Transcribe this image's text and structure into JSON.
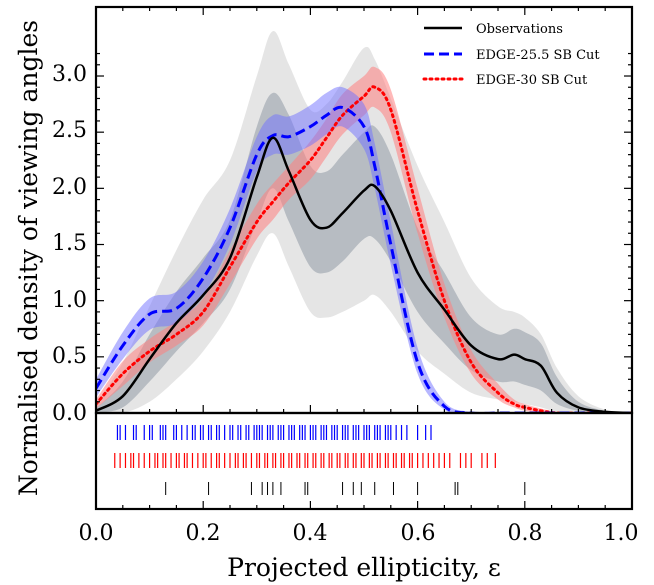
{
  "chart_data": {
    "type": "area",
    "xlabel": "Projected ellipticity, ε",
    "ylabel": "Normalised density of viewing angles",
    "xlim": [
      0.0,
      1.0
    ],
    "ylim": [
      0.0,
      3.5
    ],
    "xticks": [
      "0.0",
      "0.2",
      "0.4",
      "0.6",
      "0.8",
      "1.0"
    ],
    "yticks": [
      "0.0",
      "0.5",
      "1.0",
      "1.5",
      "2.0",
      "2.5",
      "3.0"
    ],
    "legend_position": "top-right",
    "grid": false,
    "colors": {
      "observations": "#000000",
      "edge255": "#0000ff",
      "edge30": "#ff0000",
      "obs_band_outer": "#e0e0e0",
      "obs_band_inner": "#a7adb5",
      "edge255_band": "#6f6fff",
      "edge30_band": "#ff8080"
    },
    "x": [
      0.0,
      0.05,
      0.1,
      0.15,
      0.2,
      0.25,
      0.3,
      0.33,
      0.36,
      0.4,
      0.43,
      0.46,
      0.5,
      0.52,
      0.55,
      0.6,
      0.65,
      0.7,
      0.75,
      0.78,
      0.8,
      0.83,
      0.86,
      0.9,
      0.95,
      1.0
    ],
    "series": [
      {
        "name": "Observations",
        "style": "solid",
        "values": [
          0.02,
          0.15,
          0.48,
          0.8,
          1.05,
          1.38,
          2.1,
          2.45,
          2.15,
          1.72,
          1.65,
          1.78,
          1.98,
          2.02,
          1.8,
          1.25,
          0.92,
          0.6,
          0.48,
          0.52,
          0.48,
          0.42,
          0.18,
          0.05,
          0.01,
          0.0
        ],
        "band_outer": {
          "lower": [
            0.0,
            0.0,
            0.1,
            0.3,
            0.55,
            0.9,
            1.4,
            1.6,
            1.3,
            0.9,
            0.85,
            0.9,
            1.0,
            1.05,
            0.9,
            0.55,
            0.35,
            0.18,
            0.12,
            0.1,
            0.08,
            0.05,
            0.01,
            0.0,
            0.0,
            0.0
          ],
          "upper": [
            0.08,
            0.45,
            0.95,
            1.45,
            1.9,
            2.25,
            3.0,
            3.4,
            3.1,
            2.7,
            2.75,
            2.95,
            3.25,
            3.15,
            2.8,
            2.2,
            1.7,
            1.2,
            0.95,
            0.9,
            0.85,
            0.7,
            0.4,
            0.15,
            0.03,
            0.0
          ]
        },
        "band_inner": {
          "lower": [
            0.0,
            0.05,
            0.28,
            0.55,
            0.8,
            1.1,
            1.7,
            2.0,
            1.7,
            1.3,
            1.25,
            1.35,
            1.55,
            1.55,
            1.35,
            0.9,
            0.62,
            0.38,
            0.28,
            0.28,
            0.25,
            0.2,
            0.08,
            0.02,
            0.0,
            0.0
          ],
          "upper": [
            0.04,
            0.28,
            0.7,
            1.08,
            1.38,
            1.72,
            2.55,
            2.85,
            2.65,
            2.2,
            2.15,
            2.3,
            2.5,
            2.55,
            2.3,
            1.65,
            1.25,
            0.85,
            0.7,
            0.75,
            0.72,
            0.62,
            0.32,
            0.1,
            0.02,
            0.0
          ]
        }
      },
      {
        "name": "EDGE-25.5 SB Cut",
        "style": "dashed",
        "values": [
          0.22,
          0.6,
          0.88,
          0.93,
          1.2,
          1.65,
          2.3,
          2.47,
          2.46,
          2.55,
          2.65,
          2.72,
          2.55,
          2.2,
          1.5,
          0.45,
          0.06,
          0.0,
          0.0,
          0.0,
          0.0,
          0.0,
          0.0,
          0.0,
          0.0,
          0.0
        ],
        "band": {
          "lower": [
            0.14,
            0.48,
            0.74,
            0.8,
            1.05,
            1.5,
            2.15,
            2.3,
            2.3,
            2.38,
            2.48,
            2.55,
            2.35,
            2.0,
            1.32,
            0.35,
            0.03,
            0.0,
            0.0,
            0.0,
            0.0,
            0.0,
            0.0,
            0.0,
            0.0,
            0.0
          ],
          "upper": [
            0.3,
            0.72,
            1.02,
            1.08,
            1.35,
            1.82,
            2.46,
            2.65,
            2.64,
            2.74,
            2.85,
            2.9,
            2.75,
            2.4,
            1.7,
            0.58,
            0.1,
            0.01,
            0.0,
            0.0,
            0.0,
            0.0,
            0.0,
            0.0,
            0.0,
            0.0
          ]
        }
      },
      {
        "name": "EDGE-30 SB Cut",
        "style": "dotted",
        "values": [
          0.08,
          0.35,
          0.55,
          0.7,
          0.9,
          1.3,
          1.7,
          1.88,
          2.05,
          2.25,
          2.45,
          2.65,
          2.82,
          2.9,
          2.7,
          1.8,
          1.0,
          0.45,
          0.18,
          0.08,
          0.05,
          0.02,
          0.0,
          0.0,
          0.0,
          0.0
        ],
        "band": {
          "lower": [
            0.04,
            0.24,
            0.45,
            0.6,
            0.78,
            1.15,
            1.55,
            1.72,
            1.9,
            2.08,
            2.28,
            2.48,
            2.65,
            2.72,
            2.5,
            1.6,
            0.85,
            0.35,
            0.12,
            0.05,
            0.02,
            0.0,
            0.0,
            0.0,
            0.0,
            0.0
          ],
          "upper": [
            0.12,
            0.46,
            0.66,
            0.82,
            1.02,
            1.45,
            1.86,
            2.04,
            2.2,
            2.42,
            2.62,
            2.84,
            3.0,
            3.08,
            2.88,
            2.0,
            1.15,
            0.56,
            0.26,
            0.12,
            0.08,
            0.04,
            0.01,
            0.0,
            0.0,
            0.0
          ]
        }
      }
    ],
    "rug": [
      {
        "name": "EDGE-25.5 SB Cut",
        "values": [
          0.04,
          0.045,
          0.055,
          0.07,
          0.075,
          0.09,
          0.1,
          0.105,
          0.12,
          0.125,
          0.13,
          0.145,
          0.15,
          0.16,
          0.17,
          0.18,
          0.185,
          0.195,
          0.2,
          0.21,
          0.215,
          0.225,
          0.23,
          0.24,
          0.25,
          0.255,
          0.265,
          0.27,
          0.28,
          0.285,
          0.295,
          0.3,
          0.305,
          0.31,
          0.32,
          0.325,
          0.33,
          0.34,
          0.345,
          0.35,
          0.36,
          0.365,
          0.37,
          0.38,
          0.385,
          0.39,
          0.4,
          0.405,
          0.41,
          0.42,
          0.425,
          0.43,
          0.44,
          0.445,
          0.45,
          0.46,
          0.465,
          0.47,
          0.48,
          0.485,
          0.49,
          0.5,
          0.505,
          0.51,
          0.52,
          0.525,
          0.53,
          0.54,
          0.545,
          0.55,
          0.56,
          0.57,
          0.58,
          0.6,
          0.615,
          0.625
        ]
      },
      {
        "name": "EDGE-30 SB Cut",
        "values": [
          0.035,
          0.045,
          0.055,
          0.065,
          0.07,
          0.08,
          0.09,
          0.1,
          0.11,
          0.115,
          0.125,
          0.13,
          0.14,
          0.15,
          0.155,
          0.165,
          0.17,
          0.18,
          0.19,
          0.2,
          0.205,
          0.215,
          0.225,
          0.23,
          0.24,
          0.25,
          0.26,
          0.265,
          0.275,
          0.28,
          0.29,
          0.3,
          0.305,
          0.315,
          0.32,
          0.33,
          0.335,
          0.345,
          0.35,
          0.36,
          0.365,
          0.375,
          0.38,
          0.39,
          0.395,
          0.405,
          0.41,
          0.42,
          0.425,
          0.435,
          0.44,
          0.45,
          0.455,
          0.465,
          0.47,
          0.48,
          0.485,
          0.495,
          0.5,
          0.51,
          0.515,
          0.525,
          0.53,
          0.54,
          0.545,
          0.555,
          0.56,
          0.57,
          0.575,
          0.585,
          0.59,
          0.6,
          0.61,
          0.62,
          0.63,
          0.64,
          0.65,
          0.66,
          0.68,
          0.69,
          0.7,
          0.72,
          0.73,
          0.745
        ]
      },
      {
        "name": "Observations",
        "values": [
          0.13,
          0.21,
          0.29,
          0.31,
          0.32,
          0.33,
          0.345,
          0.39,
          0.395,
          0.46,
          0.48,
          0.495,
          0.52,
          0.555,
          0.6,
          0.67,
          0.675,
          0.8
        ]
      }
    ]
  }
}
